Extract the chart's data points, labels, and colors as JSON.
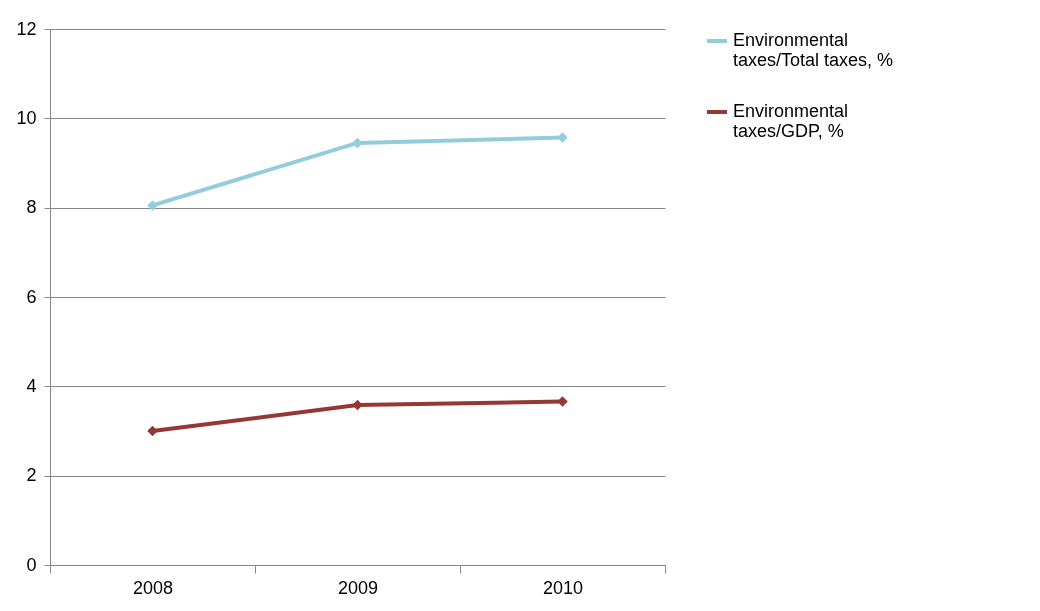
{
  "chart_data": {
    "type": "line",
    "categories": [
      "2008",
      "2009",
      "2010"
    ],
    "series": [
      {
        "name": "Environmental taxes/Total taxes, %",
        "color": "#93cddd",
        "values": [
          8.05,
          9.45,
          9.57
        ]
      },
      {
        "name": "Environmental taxes/GDP, %",
        "color": "#953735",
        "values": [
          3.0,
          3.58,
          3.66
        ]
      }
    ],
    "ylim": [
      0,
      12
    ],
    "yticks": [
      0,
      2,
      4,
      6,
      8,
      10,
      12
    ],
    "grid": "y",
    "legend": "right",
    "marker": "diamond",
    "line_style": "solid"
  }
}
